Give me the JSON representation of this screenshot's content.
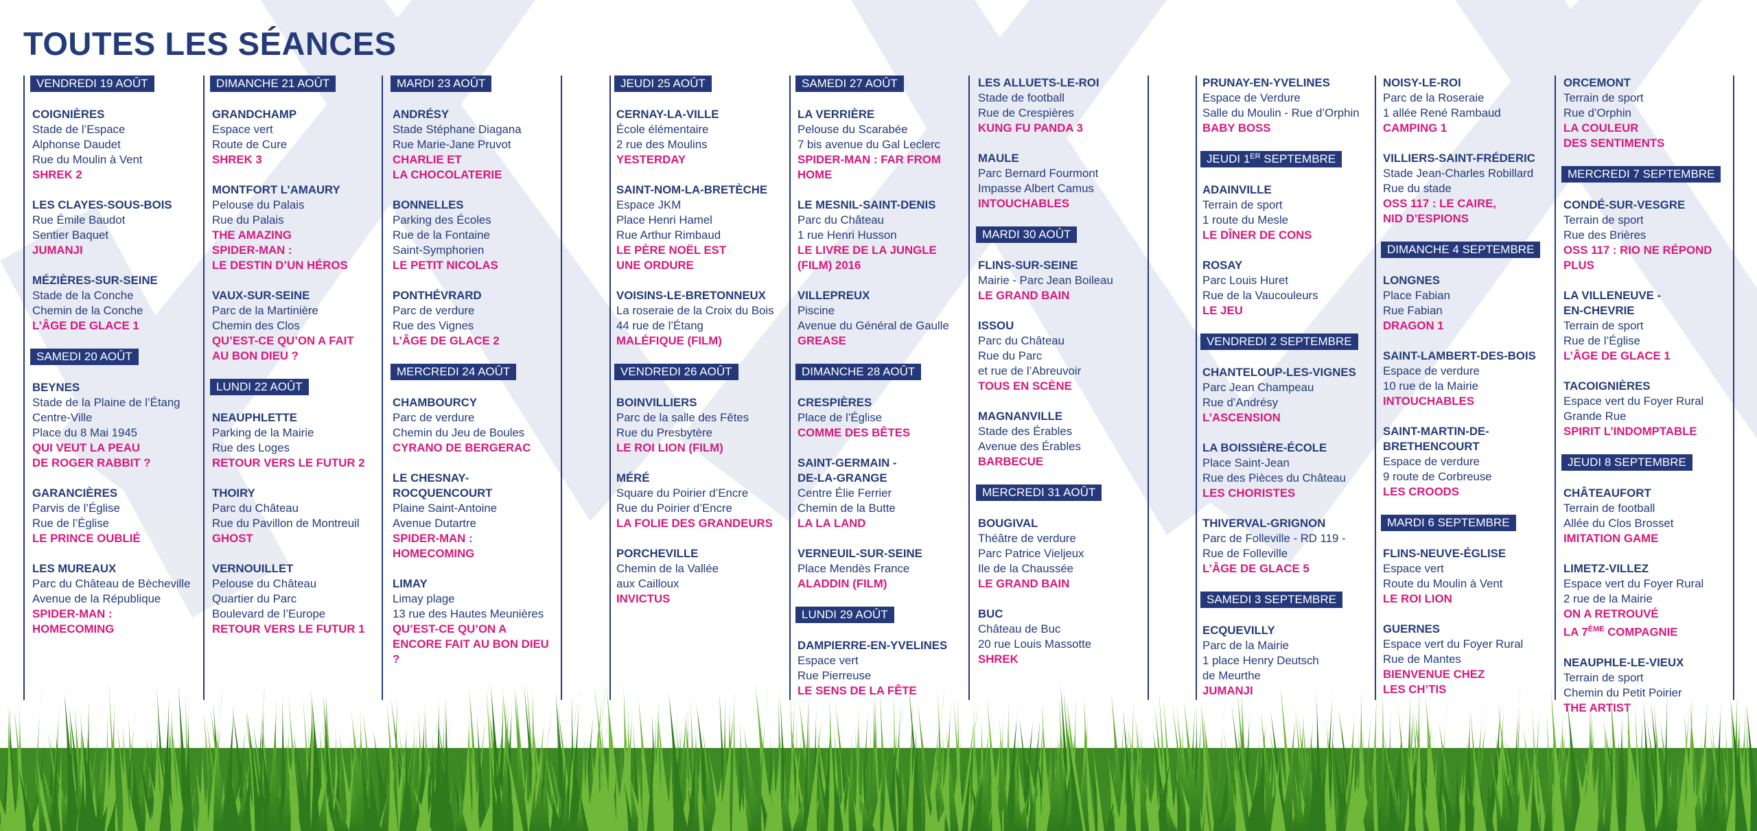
{
  "title": "TOUTES LES SÉANCES",
  "colors": {
    "navy": "#24387a",
    "magenta": "#d6197c",
    "grass": "#4a9a2a"
  },
  "columns": [
    {
      "blocks": [
        {
          "type": "date",
          "text": "VENDREDI 19 AOÛT"
        },
        {
          "type": "venue",
          "town": "COIGNIÈRES",
          "lines": [
            "Stade de l’Espace",
            "Alphonse Daudet",
            "Rue du Moulin à Vent"
          ],
          "film": "SHREK 2"
        },
        {
          "type": "venue",
          "town": "LES CLAYES-SOUS-BOIS",
          "lines": [
            "Rue Émile Baudot",
            "Sentier Baquet"
          ],
          "film": "JUMANJI"
        },
        {
          "type": "venue",
          "town": "MÉZIÈRES-SUR-SEINE",
          "lines": [
            "Stade de la Conche",
            "Chemin de la Conche"
          ],
          "film": "L’ÂGE DE GLACE 1"
        },
        {
          "type": "date",
          "text": "SAMEDI 20 AOÛT"
        },
        {
          "type": "venue",
          "town": "BEYNES",
          "lines": [
            "Stade de la Plaine de l’Étang",
            "Centre-Ville",
            "Place du 8 Mai 1945"
          ],
          "film": "QUI VEUT LA PEAU\nDE ROGER RABBIT ?"
        },
        {
          "type": "venue",
          "town": "GARANCIÈRES",
          "lines": [
            "Parvis de l’Église",
            "Rue de l’Église"
          ],
          "film": "LE PRINCE OUBLIÉ"
        },
        {
          "type": "venue",
          "town": "LES MUREAUX",
          "lines": [
            "Parc du Château de Bècheville",
            "Avenue de la République"
          ],
          "film": "SPIDER-MAN :\nHOMECOMING"
        }
      ]
    },
    {
      "blocks": [
        {
          "type": "date",
          "text": "DIMANCHE 21 AOÛT"
        },
        {
          "type": "venue",
          "town": "GRANDCHAMP",
          "lines": [
            "Espace vert",
            "Route de Cure"
          ],
          "film": "SHREK 3"
        },
        {
          "type": "venue",
          "town": "MONTFORT L’AMAURY",
          "lines": [
            "Pelouse du Palais",
            "Rue du Palais"
          ],
          "film": "THE AMAZING\nSPIDER-MAN :\nLE DESTIN D’UN HÉROS"
        },
        {
          "type": "venue",
          "town": "VAUX-SUR-SEINE",
          "lines": [
            "Parc de la Martinière",
            "Chemin des Clos"
          ],
          "film": "QU’EST-CE QU’ON A FAIT\nAU BON DIEU ?"
        },
        {
          "type": "date",
          "text": "LUNDI 22 AOÛT"
        },
        {
          "type": "venue",
          "town": "NEAUPHLETTE",
          "lines": [
            "Parking de la Mairie",
            "Rue des Loges"
          ],
          "film": "RETOUR VERS LE FUTUR 2"
        },
        {
          "type": "venue",
          "town": "THOIRY",
          "lines": [
            "Parc du Château",
            "Rue du Pavillon de Montreuil"
          ],
          "film": "GHOST"
        },
        {
          "type": "venue",
          "town": "VERNOUILLET",
          "lines": [
            "Pelouse du Château",
            "Quartier du Parc",
            "Boulevard de l’Europe"
          ],
          "film": "RETOUR VERS LE FUTUR 1"
        }
      ]
    },
    {
      "blocks": [
        {
          "type": "date",
          "text": "MARDI 23 AOÛT"
        },
        {
          "type": "venue",
          "town": "ANDRÉSY",
          "lines": [
            "Stade Stéphane Diagana",
            "Rue Marie-Jane Pruvot"
          ],
          "film": "CHARLIE ET\nLA CHOCOLATERIE"
        },
        {
          "type": "venue",
          "town": "BONNELLES",
          "lines": [
            "Parking des Écoles",
            "Rue de la Fontaine",
            "Saint-Symphorien"
          ],
          "film": "LE PETIT NICOLAS"
        },
        {
          "type": "venue",
          "town": "PONTHÉVRARD",
          "lines": [
            "Parc de verdure",
            "Rue des Vignes"
          ],
          "film": "L’ÂGE DE GLACE 2"
        },
        {
          "type": "date",
          "text": "MERCREDI 24 AOÛT"
        },
        {
          "type": "venue",
          "town": "CHAMBOURCY",
          "lines": [
            "Parc de verdure",
            "Chemin du Jeu de Boules"
          ],
          "film": "CYRANO DE BERGERAC"
        },
        {
          "type": "venue",
          "town": "LE CHESNAY-\nROCQUENCOURT",
          "lines": [
            "Plaine Saint-Antoine",
            "Avenue Dutartre"
          ],
          "film": "SPIDER-MAN :\nHOMECOMING"
        },
        {
          "type": "venue",
          "town": "LIMAY",
          "lines": [
            "Limay plage",
            "13 rue des Hautes Meunières"
          ],
          "film": "QU’EST-CE QU’ON A\nENCORE FAIT AU BON DIEU ?"
        }
      ]
    },
    {
      "blocks": [
        {
          "type": "date",
          "text": "JEUDI 25 AOÛT"
        },
        {
          "type": "venue",
          "town": "CERNAY-LA-VILLE",
          "lines": [
            "École élémentaire",
            "2 rue des Moulins"
          ],
          "film": "YESTERDAY"
        },
        {
          "type": "venue",
          "town": "SAINT-NOM-LA-BRETÈCHE",
          "lines": [
            "Espace JKM",
            "Place Henri Hamel",
            "Rue Arthur Rimbaud"
          ],
          "film": "LE PÈRE NOËL EST\nUNE ORDURE"
        },
        {
          "type": "venue",
          "town": "VOISINS-LE-BRETONNEUX",
          "lines": [
            "La roseraie de la Croix du Bois",
            "44 rue de l’Étang"
          ],
          "film": "MALÉFIQUE (FILM)"
        },
        {
          "type": "date",
          "text": "VENDREDI 26 AOÛT"
        },
        {
          "type": "venue",
          "town": "BOINVILLIERS",
          "lines": [
            "Parc de la salle des Fêtes",
            "Rue du Presbytère"
          ],
          "film": "LE ROI LION (FILM)"
        },
        {
          "type": "venue",
          "town": "MÉRÉ",
          "lines": [
            "Square du Poirier d’Encre",
            "Rue du Poirier d’Encre"
          ],
          "film": "LA FOLIE DES GRANDEURS"
        },
        {
          "type": "venue",
          "town": "PORCHEVILLE",
          "lines": [
            "Chemin de la Vallée",
            "aux Cailloux"
          ],
          "film": "INVICTUS"
        }
      ]
    },
    {
      "blocks": [
        {
          "type": "date",
          "text": "SAMEDI 27 AOÛT"
        },
        {
          "type": "venue",
          "town": "LA VERRIÈRE",
          "lines": [
            "Pelouse du Scarabée",
            "7 bis avenue du Gal Leclerc"
          ],
          "film": "SPIDER-MAN : FAR FROM\nHOME"
        },
        {
          "type": "venue",
          "town": "LE MESNIL-SAINT-DENIS",
          "lines": [
            "Parc du Château",
            "1 rue Henri Husson"
          ],
          "film": "LE LIVRE DE LA JUNGLE\n(FILM) 2016"
        },
        {
          "type": "venue",
          "town": "VILLEPREUX",
          "lines": [
            "Piscine",
            "Avenue du Général de Gaulle"
          ],
          "film": "GREASE"
        },
        {
          "type": "date",
          "text": "DIMANCHE 28 AOÛT"
        },
        {
          "type": "venue",
          "town": "CRESPIÈRES",
          "lines": [
            "Place de l’Église"
          ],
          "film": "COMME DES BÊTES"
        },
        {
          "type": "venue",
          "town": "SAINT-GERMAIN -\nDE-LA-GRANGE",
          "lines": [
            "Centre Élie Ferrier",
            "Chemin de la Butte"
          ],
          "film": "LA LA LAND"
        },
        {
          "type": "venue",
          "town": "VERNEUIL-SUR-SEINE",
          "lines": [
            "Place Mendès France"
          ],
          "film": "ALADDIN (FILM)"
        },
        {
          "type": "date",
          "text": "LUNDI 29 AOÛT"
        },
        {
          "type": "venue",
          "town": "DAMPIERRE-EN-YVELINES",
          "lines": [
            "Espace vert",
            "Rue Pierreuse"
          ],
          "film": "LE SENS DE LA FÊTE"
        }
      ]
    },
    {
      "blocks": [
        {
          "type": "venue",
          "town": "LES ALLUETS-LE-ROI",
          "lines": [
            "Stade de football",
            "Rue de Crespières"
          ],
          "film": "KUNG FU PANDA 3"
        },
        {
          "type": "venue",
          "town": "MAULE",
          "lines": [
            "Parc Bernard Fourmont",
            "Impasse Albert Camus"
          ],
          "film": "INTOUCHABLES"
        },
        {
          "type": "date",
          "text": "MARDI 30 AOÛT"
        },
        {
          "type": "venue",
          "town": "FLINS-SUR-SEINE",
          "lines": [
            "Mairie - Parc Jean Boileau"
          ],
          "film": "LE GRAND BAIN"
        },
        {
          "type": "venue",
          "town": "ISSOU",
          "lines": [
            "Parc du Château",
            "Rue du Parc",
            "et rue de l’Abreuvoir"
          ],
          "film": "TOUS EN SCÈNE"
        },
        {
          "type": "venue",
          "town": "MAGNANVILLE",
          "lines": [
            "Stade des Érables",
            "Avenue des Érables"
          ],
          "film": "BARBECUE"
        },
        {
          "type": "date",
          "text": "MERCREDI 31 AOÛT"
        },
        {
          "type": "venue",
          "town": "BOUGIVAL",
          "lines": [
            "Théâtre de verdure",
            "Parc Patrice Vieljeux",
            "Ile de la Chaussée"
          ],
          "film": "LE GRAND BAIN"
        },
        {
          "type": "venue",
          "town": "BUC",
          "lines": [
            "Château de Buc",
            "20 rue Louis Massotte"
          ],
          "film": "SHREK"
        }
      ]
    },
    {
      "blocks": [
        {
          "type": "venue",
          "town": "PRUNAY-EN-YVELINES",
          "lines": [
            "Espace de Verdure",
            "Salle du Moulin - Rue d’Orphin"
          ],
          "film": "BABY BOSS"
        },
        {
          "type": "date",
          "text": "JEUDI 1",
          "sup": "er",
          "text_after": " SEPTEMBRE"
        },
        {
          "type": "venue",
          "town": "ADAINVILLE",
          "lines": [
            "Terrain de sport",
            "1 route du Mesle"
          ],
          "film": "LE DÎNER DE CONS"
        },
        {
          "type": "venue",
          "town": "ROSAY",
          "lines": [
            "Parc Louis Huret",
            "Rue de la Vaucouleurs"
          ],
          "film": "LE JEU"
        },
        {
          "type": "date",
          "text": "VENDREDI 2 SEPTEMBRE"
        },
        {
          "type": "venue",
          "town": "CHANTELOUP-LES-VIGNES",
          "lines": [
            "Parc Jean Champeau",
            "Rue d’Andrésy"
          ],
          "film": "L’ASCENSION"
        },
        {
          "type": "venue",
          "town": "LA BOISSIÈRE-ÉCOLE",
          "lines": [
            "Place Saint-Jean",
            "Rue des Pièces du Château"
          ],
          "film": "LES CHORISTES"
        },
        {
          "type": "venue",
          "town": "THIVERVAL-GRIGNON",
          "lines": [
            "Parc de Folleville - RD 119 -",
            "Rue de Folleville"
          ],
          "film": "L’ÂGE DE GLACE 5"
        },
        {
          "type": "date",
          "text": "SAMEDI 3 SEPTEMBRE"
        },
        {
          "type": "venue",
          "town": "ECQUEVILLY",
          "lines": [
            "Parc de la Mairie",
            "1 place Henry Deutsch",
            "de Meurthe"
          ],
          "film": "JUMANJI"
        }
      ]
    },
    {
      "blocks": [
        {
          "type": "venue",
          "town": "NOISY-LE-ROI",
          "lines": [
            "Parc de la Roseraie",
            "1 allée René Rambaud"
          ],
          "film": "CAMPING 1"
        },
        {
          "type": "venue",
          "town": "VILLIERS-SAINT-FRÉDERIC",
          "lines": [
            "Stade Jean-Charles Robillard",
            "Rue du stade"
          ],
          "film": "OSS 117 : LE CAIRE,\nNID D’ESPIONS"
        },
        {
          "type": "date",
          "text": "DIMANCHE 4 SEPTEMBRE"
        },
        {
          "type": "venue",
          "town": "LONGNES",
          "lines": [
            "Place Fabian",
            "Rue Fabian"
          ],
          "film": "DRAGON 1"
        },
        {
          "type": "venue",
          "town": "SAINT-LAMBERT-DES-BOIS",
          "lines": [
            "Espace de verdure",
            "10 rue de la Mairie"
          ],
          "film": "INTOUCHABLES"
        },
        {
          "type": "venue",
          "town": "SAINT-MARTIN-DE-\nBRETHENCOURT",
          "lines": [
            "Espace de verdure",
            "9 route de Corbreuse"
          ],
          "film": "LES CROODS"
        },
        {
          "type": "date",
          "text": "MARDI 6 SEPTEMBRE"
        },
        {
          "type": "venue",
          "town": "FLINS-NEUVE-ÉGLISE",
          "lines": [
            "Espace vert",
            "Route du Moulin à Vent"
          ],
          "film": "LE ROI LION"
        },
        {
          "type": "venue",
          "town": "GUERNES",
          "lines": [
            "Espace vert du Foyer Rural",
            "Rue de Mantes"
          ],
          "film": "BIENVENUE CHEZ\nLES CH’TIS"
        }
      ]
    },
    {
      "blocks": [
        {
          "type": "venue",
          "town": "ORCEMONT",
          "lines": [
            "Terrain de sport",
            "Rue d’Orphin"
          ],
          "film": "LA COULEUR\nDES SENTIMENTS"
        },
        {
          "type": "date",
          "text": "MERCREDI 7 SEPTEMBRE"
        },
        {
          "type": "venue",
          "town": "CONDÉ-SUR-VESGRE",
          "lines": [
            "Terrain de sport",
            "Rue des Brières"
          ],
          "film": "OSS 117 : RIO NE RÉPOND\nPLUS"
        },
        {
          "type": "venue",
          "town": "LA VILLENEUVE -\nEN-CHEVRIE",
          "lines": [
            "Terrain de sport",
            "Rue de l’Église"
          ],
          "film": "L’ÂGE DE GLACE 1"
        },
        {
          "type": "venue",
          "town": "TACOIGNIÈRES",
          "lines": [
            "Espace vert du Foyer Rural",
            "Grande Rue"
          ],
          "film": "SPIRIT L’INDOMPTABLE"
        },
        {
          "type": "date",
          "text": "JEUDI 8 SEPTEMBRE"
        },
        {
          "type": "venue",
          "town": "CHÂTEAUFORT",
          "lines": [
            "Terrain de football",
            "Allée du Clos Brosset"
          ],
          "film": "IMITATION GAME"
        },
        {
          "type": "venue",
          "town": "LIMETZ-VILLEZ",
          "lines": [
            "Espace vert du Foyer Rural",
            "2 rue de la Mairie"
          ],
          "film": "ON A RETROUVÉ\nLA 7",
          "film_sup": "ème",
          "film_after": " COMPAGNIE"
        },
        {
          "type": "venue",
          "town": "NEAUPHLE-LE-VIEUX",
          "lines": [
            "Terrain de sport",
            "Chemin du Petit Poirier"
          ],
          "film": "THE ARTIST"
        }
      ]
    }
  ]
}
